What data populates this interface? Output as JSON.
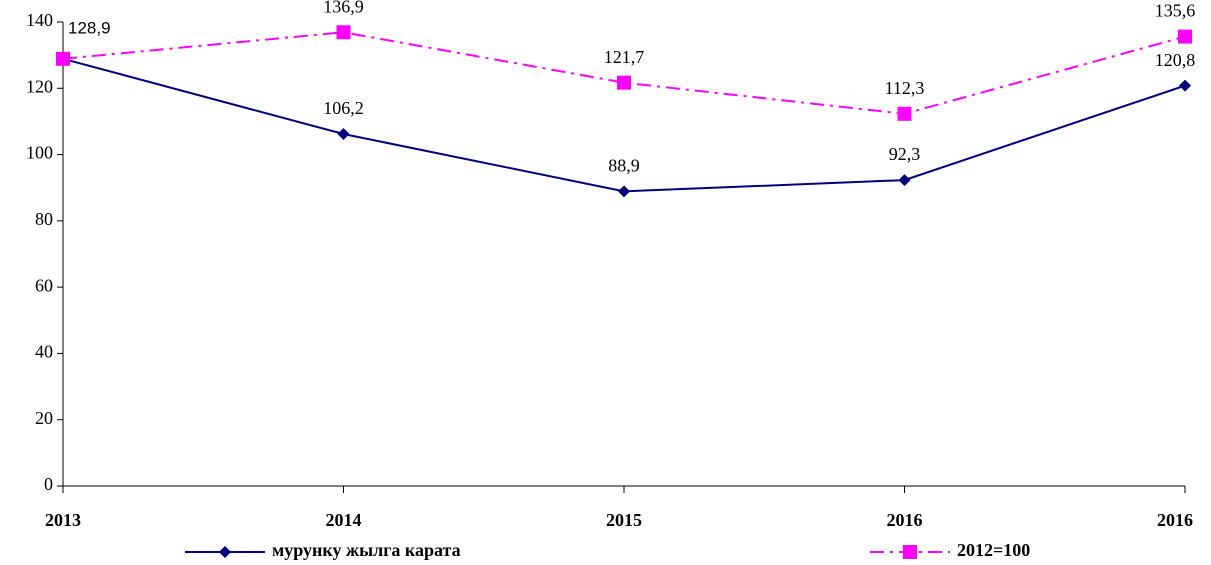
{
  "chart_data": {
    "type": "line",
    "categories": [
      "2013",
      "2014",
      "2015",
      "2016",
      "2016"
    ],
    "series": [
      {
        "name": "мурунку жылга карата",
        "color": "#000080",
        "marker": "diamond",
        "dash": "solid",
        "values": [
          128.9,
          106.2,
          88.9,
          92.3,
          120.8
        ],
        "value_labels": [
          null,
          "106,2",
          "88,9",
          "92,3",
          "120,8"
        ]
      },
      {
        "name": "2012=100",
        "color": "#ff00ff",
        "marker": "square",
        "dash": "dashdot",
        "values": [
          128.9,
          136.9,
          121.7,
          112.3,
          135.6
        ],
        "value_labels": [
          "128,9",
          "136,9",
          "121,7",
          "112,3",
          "135,6"
        ]
      }
    ],
    "ylim": [
      0,
      140
    ],
    "yticks": [
      0,
      20,
      40,
      60,
      80,
      100,
      120,
      140
    ],
    "grid": false,
    "legend": "bottom"
  }
}
